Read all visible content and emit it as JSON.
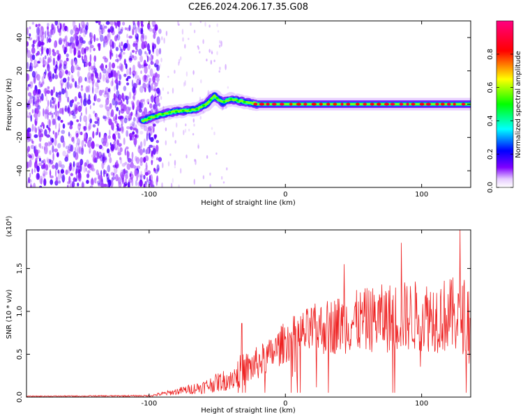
{
  "title": "C2E6.2024.206.17.35.G08",
  "chart_data": [
    {
      "type": "heatmap",
      "xlabel": "Height of straight line (km)",
      "ylabel": "Frequency (Hz)",
      "xlim": [
        -190,
        136
      ],
      "ylim": [
        -50,
        50
      ],
      "xticks": [
        -100,
        0,
        100
      ],
      "yticks": [
        -40,
        -20,
        0,
        20,
        40
      ],
      "colorbar": {
        "label": "Normalized spectral amplitude",
        "range": [
          0,
          1
        ],
        "ticks": [
          0.0,
          0.2,
          0.4,
          0.6,
          0.8
        ],
        "colormap": [
          "#ffffff",
          "#8000ff",
          "#0000ff",
          "#00ffff",
          "#00ff00",
          "#ffff00",
          "#ff0000",
          "#ff0080"
        ]
      },
      "ridge": {
        "x": [
          -105,
          -95,
          -85,
          -75,
          -65,
          -58,
          -52,
          -46,
          -40,
          -34,
          -28,
          -20,
          -10,
          0,
          10,
          30,
          60,
          90,
          120,
          136
        ],
        "freq": [
          -10,
          -7,
          -5,
          -4,
          -3,
          0,
          5,
          1,
          3,
          2,
          1,
          0,
          0,
          0,
          0,
          0,
          0,
          0,
          0,
          0
        ]
      },
      "noise_region": [
        -190,
        -92
      ]
    },
    {
      "type": "line",
      "xlabel": "Height of straight line (km)",
      "ylabel": "SNR (10 * v/v)",
      "scale_label": "(x10⁴)",
      "xlim": [
        -190,
        136
      ],
      "ylim": [
        0,
        1.95
      ],
      "xticks": [
        -100,
        0,
        100
      ],
      "yticks": [
        0.0,
        0.5,
        1.0,
        1.5
      ],
      "ytick_labels": [
        "0.0",
        "0.5",
        "1.0",
        "1.5"
      ],
      "color": "#ee2222",
      "envelope": {
        "x": [
          -190,
          -100,
          -85,
          -60,
          -40,
          -33,
          -25,
          -10,
          0,
          20,
          40,
          60,
          80,
          100,
          120,
          136
        ],
        "mean": [
          0.01,
          0.015,
          0.05,
          0.12,
          0.22,
          0.3,
          0.35,
          0.5,
          0.65,
          0.78,
          0.85,
          0.9,
          0.93,
          0.95,
          0.95,
          0.95
        ],
        "amp": [
          0.005,
          0.01,
          0.03,
          0.08,
          0.14,
          0.2,
          0.2,
          0.2,
          0.25,
          0.3,
          0.35,
          0.38,
          0.42,
          0.42,
          0.45,
          0.45
        ]
      },
      "peaks": [
        {
          "x": -32,
          "y": 0.86
        },
        {
          "x": 43,
          "y": 1.55
        },
        {
          "x": 85,
          "y": 1.8
        },
        {
          "x": 128,
          "y": 1.95
        }
      ]
    }
  ]
}
